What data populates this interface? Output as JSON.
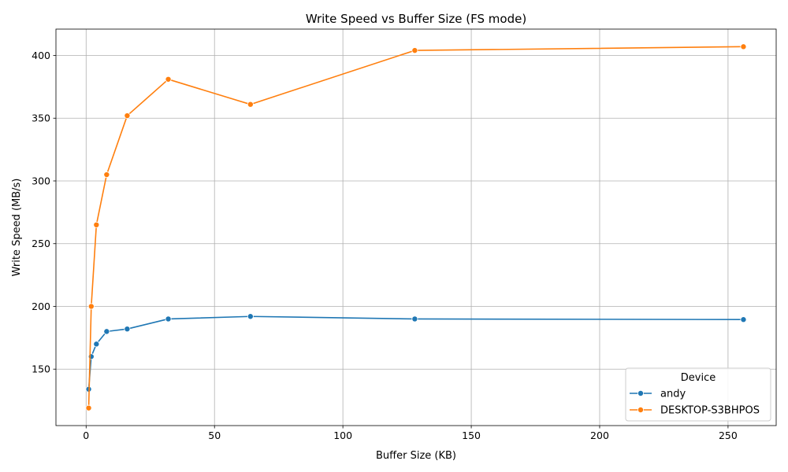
{
  "chart_data": {
    "type": "line",
    "title": "Write Speed vs Buffer Size (FS mode)",
    "xlabel": "Buffer Size (KB)",
    "ylabel": "Write Speed (MB/s)",
    "xlim": [
      -11.75,
      268.75
    ],
    "ylim": [
      105,
      421
    ],
    "xticks": [
      0,
      50,
      100,
      150,
      200,
      250
    ],
    "yticks": [
      150,
      200,
      250,
      300,
      350,
      400
    ],
    "grid": true,
    "legend": {
      "title": "Device",
      "position": "lower-right"
    },
    "x": [
      1,
      2,
      4,
      8,
      16,
      32,
      64,
      128,
      256
    ],
    "series": [
      {
        "name": "andy",
        "color": "#1f77b4",
        "values": [
          134,
          160,
          170,
          180,
          182,
          190,
          192,
          190,
          189.5
        ]
      },
      {
        "name": "DESKTOP-S3BHPOS",
        "color": "#ff7f0e",
        "values": [
          119,
          200,
          265,
          305,
          352,
          381,
          361,
          404,
          407
        ]
      }
    ]
  }
}
